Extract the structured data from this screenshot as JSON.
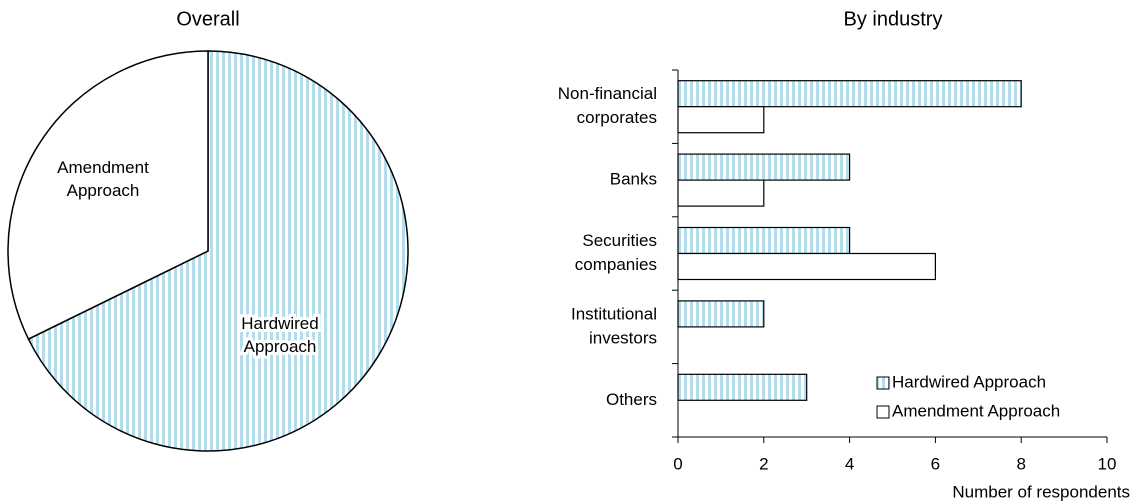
{
  "chart_data": [
    {
      "type": "pie",
      "title": "Overall",
      "categories": [
        [
          "Hardwired",
          "Approach"
        ],
        [
          "Amendment",
          "Approach"
        ]
      ],
      "values": [
        21,
        10
      ],
      "colors": [
        "#b3dcec",
        "#ffffff"
      ]
    },
    {
      "type": "hbar",
      "title": "By industry",
      "categories": [
        [
          "Non-financial",
          "corporates"
        ],
        [
          "Banks"
        ],
        [
          "Securities",
          "companies"
        ],
        [
          "Institutional",
          "investors"
        ],
        [
          "Others"
        ]
      ],
      "series": [
        {
          "name": "Hardwired Approach",
          "color": "#b3dcec",
          "values": [
            8,
            4,
            4,
            2,
            3
          ]
        },
        {
          "name": "Amendment Approach",
          "color": "#ffffff",
          "values": [
            2,
            2,
            6,
            0,
            0
          ]
        }
      ],
      "xlim": [
        0,
        10
      ],
      "xticks": [
        0,
        2,
        4,
        6,
        8,
        10
      ],
      "xlabel": "Number of respondents",
      "legend": "lower right"
    }
  ]
}
